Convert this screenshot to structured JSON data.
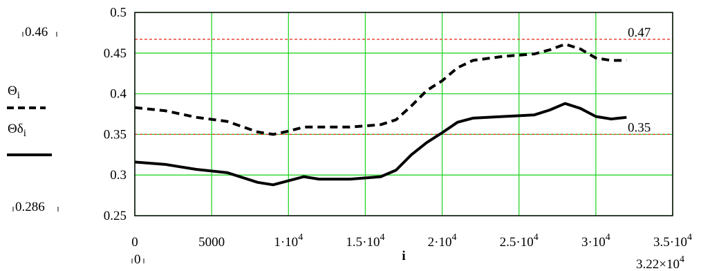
{
  "chart_data": {
    "type": "line",
    "xlabel": "i",
    "ylabel": "",
    "xlim": [
      0,
      35000
    ],
    "ylim": [
      0.25,
      0.5
    ],
    "grid": true,
    "legend_position": "left",
    "x_ticks": [
      {
        "value": 0,
        "base": "0",
        "exp": ""
      },
      {
        "value": 5000,
        "base": "5000",
        "exp": ""
      },
      {
        "value": 10000,
        "base": "1·10",
        "exp": "4"
      },
      {
        "value": 15000,
        "base": "1.5·10",
        "exp": "4"
      },
      {
        "value": 20000,
        "base": "2·10",
        "exp": "4"
      },
      {
        "value": 25000,
        "base": "2.5·10",
        "exp": "4"
      },
      {
        "value": 30000,
        "base": "3·10",
        "exp": "4"
      },
      {
        "value": 35000,
        "base": "3.5·10",
        "exp": "4"
      }
    ],
    "y_ticks": [
      "0.5",
      "0.45",
      "0.4",
      "0.35",
      "0.3",
      "0.25"
    ],
    "y_range_markers": {
      "top": "0.46",
      "bottom": "0.286"
    },
    "x_range_markers": {
      "left": "0",
      "right_base": "3.22×10",
      "right_exp": "4"
    },
    "reference_lines": [
      {
        "value": 0.467,
        "label": "0.47",
        "color": "#e8332a"
      },
      {
        "value": 0.35,
        "label": "0.35",
        "color": "#e8332a"
      }
    ],
    "series": [
      {
        "name": "Θ",
        "subscript": "i",
        "style": "dashed",
        "color": "#000000",
        "x": [
          0,
          2000,
          4000,
          6000,
          8000,
          9000,
          10000,
          11000,
          12000,
          14000,
          16000,
          17000,
          18000,
          19000,
          20000,
          21000,
          22000,
          24000,
          26000,
          27000,
          28000,
          29000,
          30000,
          31000,
          32000
        ],
        "y": [
          0.383,
          0.379,
          0.371,
          0.366,
          0.353,
          0.35,
          0.354,
          0.359,
          0.359,
          0.359,
          0.362,
          0.368,
          0.385,
          0.404,
          0.416,
          0.432,
          0.441,
          0.446,
          0.449,
          0.454,
          0.461,
          0.455,
          0.444,
          0.441,
          0.441
        ]
      },
      {
        "name": "Θδ",
        "subscript": "i",
        "style": "solid",
        "color": "#000000",
        "x": [
          0,
          2000,
          4000,
          6000,
          8000,
          9000,
          10000,
          11000,
          12000,
          14000,
          16000,
          17000,
          18000,
          19000,
          20000,
          21000,
          22000,
          24000,
          26000,
          27000,
          28000,
          29000,
          30000,
          31000,
          32000
        ],
        "y": [
          0.316,
          0.313,
          0.307,
          0.303,
          0.291,
          0.288,
          0.293,
          0.298,
          0.295,
          0.295,
          0.298,
          0.306,
          0.325,
          0.34,
          0.352,
          0.365,
          0.37,
          0.372,
          0.374,
          0.38,
          0.388,
          0.382,
          0.372,
          0.369,
          0.371
        ]
      }
    ]
  }
}
